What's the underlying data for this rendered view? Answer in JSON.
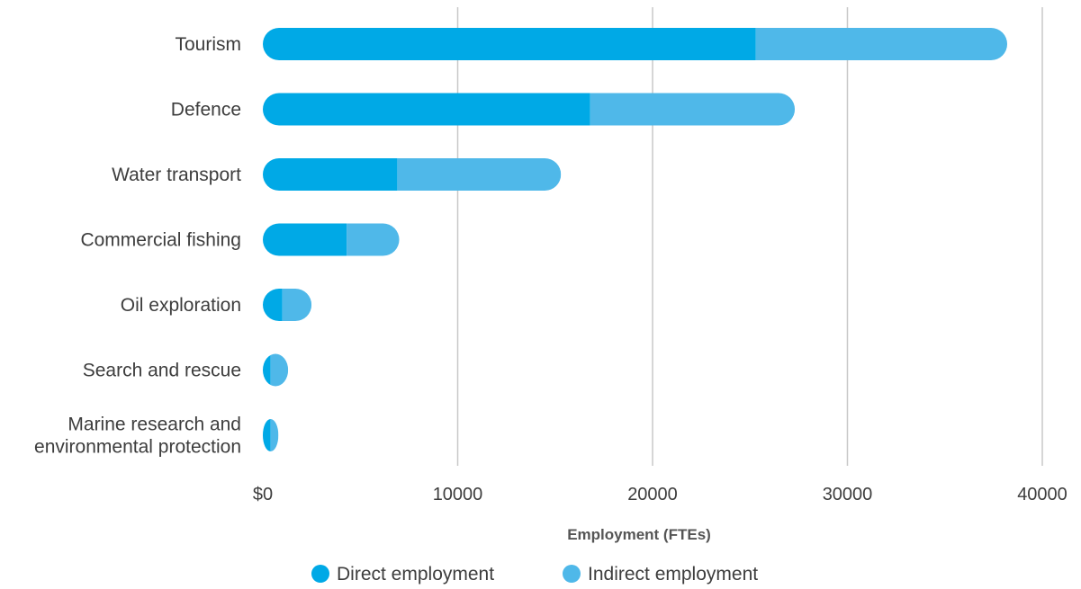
{
  "chart_data": {
    "type": "bar",
    "orientation": "horizontal",
    "stacked": true,
    "categories": [
      "Tourism",
      "Defence",
      "Water transport",
      "Commercial fishing",
      "Oil exploration",
      "Search and rescue",
      "Marine research and environmental protection"
    ],
    "category_lines": [
      [
        "Tourism"
      ],
      [
        "Defence"
      ],
      [
        "Water transport"
      ],
      [
        "Commercial fishing"
      ],
      [
        "Oil exploration"
      ],
      [
        "Search and rescue"
      ],
      [
        "Marine research and",
        "environmental protection"
      ]
    ],
    "series": [
      {
        "name": "Direct employment",
        "color": "#00a9e6",
        "values": [
          25300,
          16800,
          6900,
          4300,
          1000,
          400,
          400
        ]
      },
      {
        "name": "Indirect employment",
        "color": "#4fb8e9",
        "values": [
          12900,
          10500,
          8400,
          2700,
          1500,
          900,
          400
        ]
      }
    ],
    "xlabel": "Employment (FTEs)",
    "xlim": [
      0,
      40000
    ],
    "x_ticks": [
      0,
      10000,
      20000,
      30000,
      40000
    ],
    "x_tick_labels": [
      "$0",
      "10000",
      "20000",
      "30000",
      "40000"
    ],
    "grid": "vertical",
    "legend_position": "bottom-center",
    "bar_style": "rounded"
  }
}
